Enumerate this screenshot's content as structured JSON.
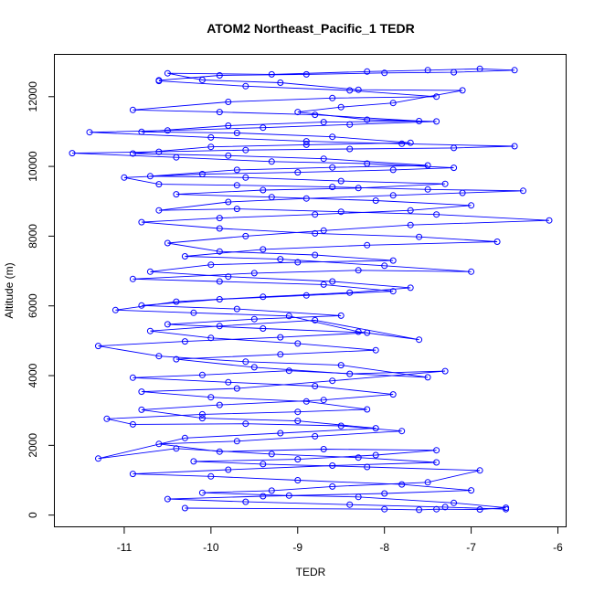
{
  "chart_data": {
    "type": "line",
    "title": "ATOM2 Northeast_Pacific_1 TEDR",
    "xlabel": "TEDR",
    "ylabel": "Altitude (m)",
    "xlim": [
      -11.8,
      -5.9
    ],
    "ylim": [
      -350,
      13200
    ],
    "x_ticks": [
      -11,
      -10,
      -9,
      -8,
      -7,
      -6
    ],
    "y_ticks": [
      0,
      2000,
      4000,
      6000,
      8000,
      10000,
      12000
    ],
    "grid": false,
    "series_color": "#0000ff",
    "marker": "open-circle",
    "series": [
      {
        "values": [
          [
            -10.3,
            200
          ],
          [
            -8.0,
            170
          ],
          [
            -7.6,
            150
          ],
          [
            -7.4,
            170
          ],
          [
            -6.9,
            160
          ],
          [
            -6.6,
            210
          ],
          [
            -7.2,
            350
          ],
          [
            -8.3,
            520
          ],
          [
            -9.1,
            560
          ],
          [
            -10.1,
            640
          ],
          [
            -9.3,
            700
          ],
          [
            -8.6,
            820
          ],
          [
            -7.5,
            940
          ],
          [
            -6.9,
            1280
          ],
          [
            -8.2,
            1380
          ],
          [
            -9.4,
            1460
          ],
          [
            -10.2,
            1540
          ],
          [
            -9.0,
            1600
          ],
          [
            -8.1,
            1720
          ],
          [
            -7.4,
            1860
          ],
          [
            -8.7,
            1890
          ],
          [
            -9.9,
            1820
          ],
          [
            -10.6,
            2040
          ],
          [
            -9.7,
            2120
          ],
          [
            -8.8,
            2260
          ],
          [
            -7.8,
            2410
          ],
          [
            -8.5,
            2560
          ],
          [
            -9.6,
            2620
          ],
          [
            -10.9,
            2600
          ],
          [
            -11.2,
            2760
          ],
          [
            -10.1,
            2890
          ],
          [
            -9.0,
            2960
          ],
          [
            -8.2,
            3030
          ],
          [
            -8.9,
            3260
          ],
          [
            -10.0,
            3380
          ],
          [
            -10.8,
            3540
          ],
          [
            -9.7,
            3630
          ],
          [
            -8.6,
            3850
          ],
          [
            -7.3,
            4130
          ],
          [
            -8.4,
            4050
          ],
          [
            -9.5,
            4240
          ],
          [
            -10.4,
            4470
          ],
          [
            -9.2,
            4610
          ],
          [
            -8.1,
            4730
          ],
          [
            -9.0,
            4920
          ],
          [
            -10.0,
            5080
          ],
          [
            -10.7,
            5280
          ],
          [
            -9.9,
            5420
          ],
          [
            -8.8,
            5590
          ],
          [
            -7.6,
            5030
          ],
          [
            -8.3,
            5260
          ],
          [
            -9.1,
            5710
          ],
          [
            -10.2,
            5800
          ],
          [
            -11.1,
            5880
          ],
          [
            -10.4,
            6120
          ],
          [
            -9.4,
            6260
          ],
          [
            -8.4,
            6380
          ],
          [
            -7.7,
            6520
          ],
          [
            -8.6,
            6700
          ],
          [
            -9.8,
            6840
          ],
          [
            -10.7,
            6980
          ],
          [
            -10.0,
            7180
          ],
          [
            -9.0,
            7250
          ],
          [
            -7.9,
            7300
          ],
          [
            -8.8,
            7460
          ],
          [
            -9.9,
            7560
          ],
          [
            -10.5,
            7800
          ],
          [
            -9.6,
            8000
          ],
          [
            -8.7,
            8160
          ],
          [
            -7.7,
            8320
          ],
          [
            -6.1,
            8450
          ],
          [
            -7.4,
            8620
          ],
          [
            -8.5,
            8700
          ],
          [
            -9.7,
            8780
          ],
          [
            -10.6,
            8740
          ],
          [
            -9.8,
            8980
          ],
          [
            -8.9,
            9080
          ],
          [
            -7.9,
            9170
          ],
          [
            -7.1,
            9240
          ],
          [
            -6.4,
            9300
          ],
          [
            -7.5,
            9340
          ],
          [
            -8.6,
            9410
          ],
          [
            -9.7,
            9460
          ],
          [
            -10.6,
            9490
          ],
          [
            -11.0,
            9680
          ],
          [
            -10.1,
            9780
          ],
          [
            -9.0,
            9830
          ],
          [
            -7.9,
            9900
          ],
          [
            -7.2,
            9960
          ],
          [
            -8.2,
            10080
          ],
          [
            -9.3,
            10140
          ],
          [
            -10.4,
            10260
          ],
          [
            -11.6,
            10380
          ],
          [
            -10.6,
            10420
          ],
          [
            -9.6,
            10470
          ],
          [
            -8.4,
            10500
          ],
          [
            -7.2,
            10530
          ],
          [
            -6.5,
            10580
          ],
          [
            -7.8,
            10650
          ],
          [
            -8.9,
            10720
          ],
          [
            -10.0,
            10830
          ],
          [
            -11.4,
            10980
          ],
          [
            -10.5,
            11030
          ],
          [
            -9.4,
            11110
          ],
          [
            -8.4,
            11200
          ],
          [
            -7.4,
            11290
          ],
          [
            -8.2,
            11340
          ],
          [
            -9.0,
            11560
          ],
          [
            -8.5,
            11700
          ],
          [
            -7.9,
            11820
          ],
          [
            -7.1,
            12180
          ],
          [
            -8.3,
            12200
          ],
          [
            -9.2,
            12400
          ],
          [
            -10.1,
            12480
          ],
          [
            -10.5,
            12670
          ],
          [
            -9.3,
            12640
          ],
          [
            -8.2,
            12720
          ],
          [
            -7.5,
            12760
          ],
          [
            -6.9,
            12800
          ],
          [
            -6.5,
            12760
          ],
          [
            -7.2,
            12700
          ],
          [
            -8.0,
            12680
          ],
          [
            -8.9,
            12640
          ],
          [
            -9.9,
            12610
          ],
          [
            -10.6,
            12470
          ]
        ]
      },
      {
        "values": [
          [
            -6.6,
            170
          ],
          [
            -7.3,
            230
          ],
          [
            -8.4,
            300
          ],
          [
            -9.6,
            380
          ],
          [
            -10.5,
            460
          ],
          [
            -9.4,
            540
          ],
          [
            -8.0,
            620
          ],
          [
            -7.0,
            710
          ],
          [
            -7.8,
            880
          ],
          [
            -9.0,
            1000
          ],
          [
            -10.0,
            1110
          ],
          [
            -10.9,
            1180
          ],
          [
            -9.8,
            1300
          ],
          [
            -8.6,
            1420
          ],
          [
            -7.4,
            1510
          ],
          [
            -8.3,
            1650
          ],
          [
            -9.3,
            1750
          ],
          [
            -10.4,
            1910
          ],
          [
            -11.3,
            1620
          ],
          [
            -10.3,
            2210
          ],
          [
            -9.2,
            2350
          ],
          [
            -8.1,
            2490
          ],
          [
            -9.0,
            2700
          ],
          [
            -10.1,
            2780
          ],
          [
            -10.8,
            3020
          ],
          [
            -9.9,
            3160
          ],
          [
            -8.7,
            3300
          ],
          [
            -7.9,
            3460
          ],
          [
            -8.8,
            3700
          ],
          [
            -9.8,
            3810
          ],
          [
            -10.9,
            3940
          ],
          [
            -10.1,
            4020
          ],
          [
            -9.1,
            4140
          ],
          [
            -7.5,
            3950
          ],
          [
            -8.5,
            4300
          ],
          [
            -9.6,
            4400
          ],
          [
            -10.6,
            4560
          ],
          [
            -11.3,
            4850
          ],
          [
            -10.3,
            4980
          ],
          [
            -9.2,
            5100
          ],
          [
            -8.2,
            5230
          ],
          [
            -9.4,
            5350
          ],
          [
            -10.5,
            5470
          ],
          [
            -9.5,
            5620
          ],
          [
            -8.5,
            5720
          ],
          [
            -9.7,
            5910
          ],
          [
            -10.8,
            6010
          ],
          [
            -9.9,
            6190
          ],
          [
            -8.9,
            6300
          ],
          [
            -7.9,
            6420
          ],
          [
            -8.7,
            6610
          ],
          [
            -9.9,
            6700
          ],
          [
            -10.9,
            6770
          ],
          [
            -9.5,
            6940
          ],
          [
            -8.3,
            7020
          ],
          [
            -7.0,
            6980
          ],
          [
            -8.0,
            7150
          ],
          [
            -9.2,
            7340
          ],
          [
            -10.3,
            7420
          ],
          [
            -9.4,
            7620
          ],
          [
            -8.2,
            7740
          ],
          [
            -6.7,
            7840
          ],
          [
            -7.6,
            7980
          ],
          [
            -8.8,
            8080
          ],
          [
            -9.9,
            8220
          ],
          [
            -10.8,
            8400
          ],
          [
            -9.9,
            8520
          ],
          [
            -8.8,
            8620
          ],
          [
            -7.7,
            8740
          ],
          [
            -7.0,
            8880
          ],
          [
            -8.1,
            9020
          ],
          [
            -9.3,
            9120
          ],
          [
            -10.4,
            9200
          ],
          [
            -9.4,
            9320
          ],
          [
            -8.3,
            9380
          ],
          [
            -7.3,
            9500
          ],
          [
            -8.5,
            9580
          ],
          [
            -9.6,
            9680
          ],
          [
            -10.7,
            9720
          ],
          [
            -9.7,
            9900
          ],
          [
            -8.6,
            9970
          ],
          [
            -7.5,
            10030
          ],
          [
            -8.7,
            10220
          ],
          [
            -9.8,
            10310
          ],
          [
            -10.9,
            10370
          ],
          [
            -10.0,
            10560
          ],
          [
            -8.9,
            10620
          ],
          [
            -7.7,
            10680
          ],
          [
            -8.6,
            10850
          ],
          [
            -9.7,
            10960
          ],
          [
            -10.8,
            10990
          ],
          [
            -9.8,
            11170
          ],
          [
            -8.7,
            11270
          ],
          [
            -7.6,
            11300
          ],
          [
            -8.8,
            11480
          ],
          [
            -9.9,
            11560
          ],
          [
            -10.9,
            11620
          ],
          [
            -9.8,
            11850
          ],
          [
            -8.6,
            11960
          ],
          [
            -7.4,
            12000
          ],
          [
            -8.4,
            12180
          ],
          [
            -9.6,
            12300
          ],
          [
            -10.6,
            12450
          ]
        ]
      }
    ]
  }
}
